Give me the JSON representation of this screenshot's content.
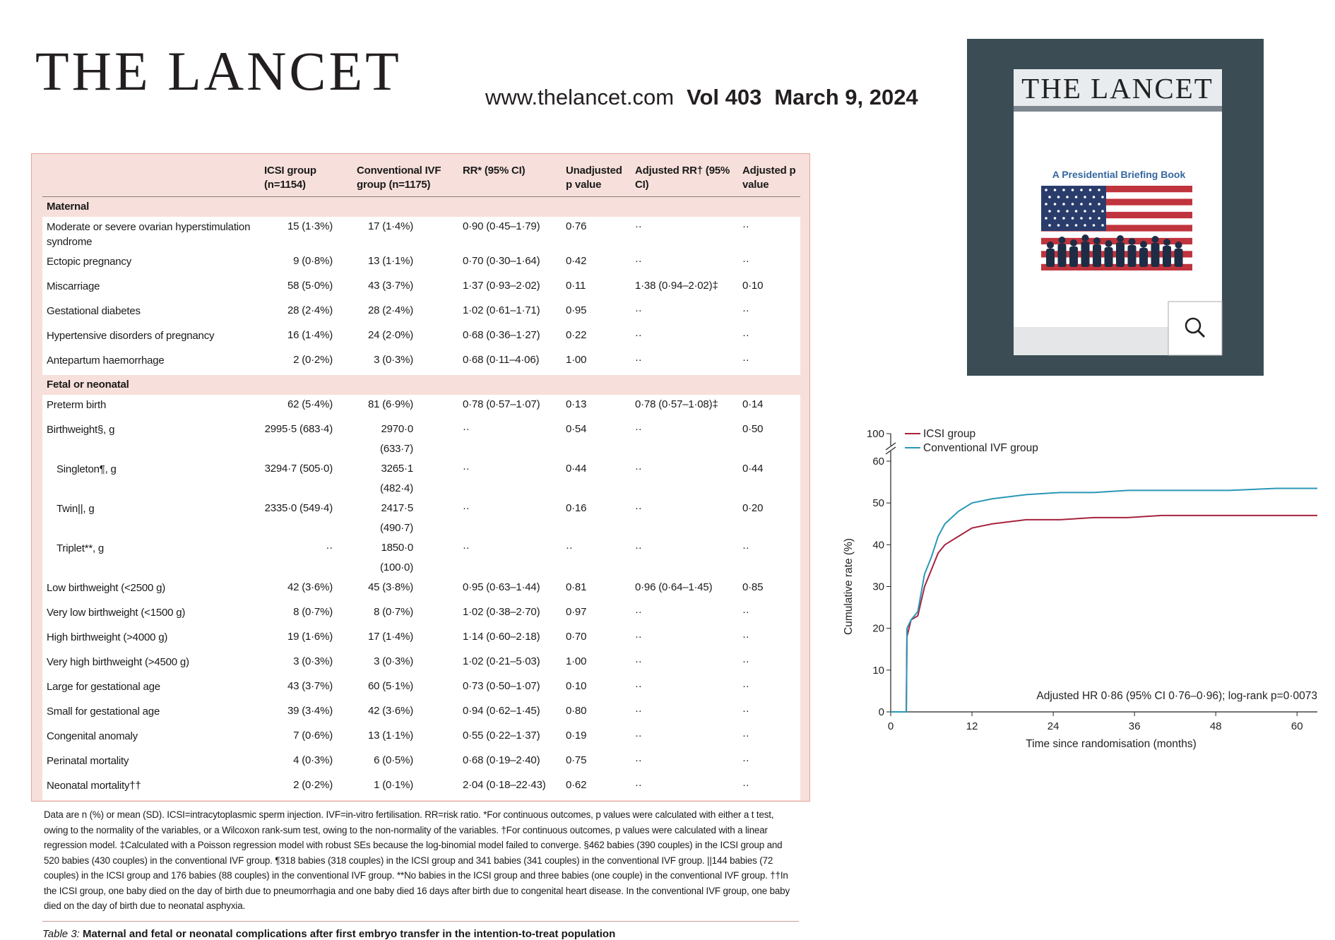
{
  "header": {
    "logo": "THE LANCET",
    "url": "www.thelancet.com",
    "volume": "Vol 403",
    "date": "March 9, 2024"
  },
  "table": {
    "columns": [
      "",
      "ICSI group (n=1154)",
      "Conventional IVF group (n=1175)",
      "RR* (95% CI)",
      "Unadjusted p value",
      "Adjusted RR† (95% CI)",
      "Adjusted p value"
    ],
    "sections": [
      {
        "title": "Maternal",
        "rows": [
          {
            "cells": [
              "Moderate or severe ovarian hyperstimulation syndrome",
              "15 (1·3%)",
              "17 (1·4%)",
              "0·90 (0·45–1·79)",
              "0·76",
              "··",
              "··"
            ]
          },
          {
            "cells": [
              "Ectopic pregnancy",
              "9 (0·8%)",
              "13 (1·1%)",
              "0·70 (0·30–1·64)",
              "0·42",
              "··",
              "··"
            ]
          },
          {
            "cells": [
              "Miscarriage",
              "58 (5·0%)",
              "43 (3·7%)",
              "1·37 (0·93–2·02)",
              "0·11",
              "1·38 (0·94–2·02)‡",
              "0·10"
            ]
          },
          {
            "cells": [
              "Gestational diabetes",
              "28 (2·4%)",
              "28 (2·4%)",
              "1·02 (0·61–1·71)",
              "0·95",
              "··",
              "··"
            ]
          },
          {
            "cells": [
              "Hypertensive disorders of pregnancy",
              "16 (1·4%)",
              "24 (2·0%)",
              "0·68 (0·36–1·27)",
              "0·22",
              "··",
              "··"
            ]
          },
          {
            "cells": [
              "Antepartum haemorrhage",
              "2 (0·2%)",
              "3 (0·3%)",
              "0·68 (0·11–4·06)",
              "1·00",
              "··",
              "··"
            ]
          }
        ]
      },
      {
        "title": "Fetal or neonatal",
        "rows": [
          {
            "cells": [
              "Preterm birth",
              "62 (5·4%)",
              "81 (6·9%)",
              "0·78 (0·57–1·07)",
              "0·13",
              "0·78 (0·57–1·08)‡",
              "0·14"
            ]
          },
          {
            "cells": [
              "Birthweight§, g",
              "2995·5 (683·4)",
              "2970·0 (633·7)",
              "··",
              "0·54",
              "··",
              "0·50"
            ]
          },
          {
            "cells": [
              "Singleton¶, g",
              "3294·7 (505·0)",
              "3265·1 (482·4)",
              "··",
              "0·44",
              "··",
              "0·44"
            ],
            "level": 1
          },
          {
            "cells": [
              "Twin||, g",
              "2335·0 (549·4)",
              "2417·5 (490·7)",
              "··",
              "0·16",
              "··",
              "0·20"
            ],
            "level": 1
          },
          {
            "cells": [
              "Triplet**, g",
              "··",
              "1850·0 (100·0)",
              "··",
              "··",
              "··",
              "··"
            ],
            "level": 1
          },
          {
            "cells": [
              "Low birthweight (<2500 g)",
              "42 (3·6%)",
              "45 (3·8%)",
              "0·95 (0·63–1·44)",
              "0·81",
              "0·96 (0·64–1·45)",
              "0·85"
            ]
          },
          {
            "cells": [
              "Very low birthweight (<1500 g)",
              "8 (0·7%)",
              "8 (0·7%)",
              "1·02 (0·38–2·70)",
              "0·97",
              "··",
              "··"
            ]
          },
          {
            "cells": [
              "High birthweight (>4000 g)",
              "19 (1·6%)",
              "17 (1·4%)",
              "1·14 (0·60–2·18)",
              "0·70",
              "··",
              "··"
            ]
          },
          {
            "cells": [
              "Very high birthweight (>4500 g)",
              "3 (0·3%)",
              "3 (0·3%)",
              "1·02 (0·21–5·03)",
              "1·00",
              "··",
              "··"
            ]
          },
          {
            "cells": [
              "Large for gestational age",
              "43 (3·7%)",
              "60 (5·1%)",
              "0·73 (0·50–1·07)",
              "0·10",
              "··",
              "··"
            ]
          },
          {
            "cells": [
              "Small for gestational age",
              "39 (3·4%)",
              "42 (3·6%)",
              "0·94 (0·62–1·45)",
              "0·80",
              "··",
              "··"
            ]
          },
          {
            "cells": [
              "Congenital anomaly",
              "7 (0·6%)",
              "13 (1·1%)",
              "0·55 (0·22–1·37)",
              "0·19",
              "··",
              "··"
            ]
          },
          {
            "cells": [
              "Perinatal mortality",
              "4 (0·3%)",
              "6 (0·5%)",
              "0·68 (0·19–2·40)",
              "0·75",
              "··",
              "··"
            ]
          },
          {
            "cells": [
              "Neonatal mortality††",
              "2 (0·2%)",
              "1 (0·1%)",
              "2·04 (0·18–22·43)",
              "0·62",
              "··",
              "··"
            ]
          }
        ]
      }
    ],
    "footnote": "Data are n (%) or mean (SD). ICSI=intracytoplasmic sperm injection. IVF=in-vitro fertilisation. RR=risk ratio. *For continuous outcomes, p values were calculated with either a t test, owing to the normality of the variables, or a Wilcoxon rank-sum test, owing to the non-normality of the variables. †For continuous outcomes, p values were calculated with a linear regression model. ‡Calculated with a Poisson regression model with robust SEs because the log-binomial model failed to converge. §462 babies (390 couples) in the ICSI group and 520 babies (430 couples) in the conventional IVF group. ¶318 babies (318 couples) in the ICSI group and 341 babies (341 couples) in the conventional IVF group. ||144 babies (72 couples) in the ICSI group and 176 babies (88 couples) in the conventional IVF group. **No babies in the ICSI group and three babies (one couple) in the conventional IVF group. ††In the ICSI group, one baby died on the day of birth due to pneumorrhagia and one baby died 16 days after birth due to congenital heart disease. In the conventional IVF group, one baby died on the day of birth due to neonatal asphyxia.",
    "caption": {
      "label": "Table 3:",
      "text": "Maternal and fetal or neonatal complications after first embryo transfer in the intention-to-treat population"
    }
  },
  "cover": {
    "title": "THE LANCET",
    "subtitle": "A Presidential Briefing Book"
  },
  "chart_data": {
    "type": "line",
    "x": [
      0,
      2.3,
      2.4,
      3,
      4,
      5,
      6,
      7,
      8,
      10,
      12,
      15,
      20,
      25,
      30,
      35,
      40,
      45,
      50,
      57,
      63
    ],
    "series": [
      {
        "name": "ICSI group",
        "color": "#a7233e",
        "values": [
          0,
          0,
          18,
          22,
          23,
          30,
          34,
          38,
          40,
          42,
          44,
          45,
          46,
          46,
          46.5,
          46.5,
          47,
          47,
          47,
          47,
          47
        ]
      },
      {
        "name": "Conventional IVF group",
        "color": "#2a97b7",
        "values": [
          0,
          0,
          20,
          22,
          24,
          33,
          37,
          42,
          45,
          48,
          50,
          51,
          52,
          52.5,
          52.5,
          53,
          53,
          53,
          53,
          53.5,
          53.5
        ]
      }
    ],
    "xlim": [
      0,
      63
    ],
    "xticks": [
      0,
      12,
      24,
      36,
      48,
      60
    ],
    "ylim": [
      0,
      100
    ],
    "yticks": [
      0,
      10,
      20,
      30,
      40,
      50,
      60,
      100
    ],
    "xlabel": "Time since randomisation (months)",
    "ylabel": "Cumulative rate (%)",
    "annotation": "Adjusted HR 0·86 (95% CI 0·76–0·96); log-rank p=0·0073",
    "legend": "upper left"
  }
}
